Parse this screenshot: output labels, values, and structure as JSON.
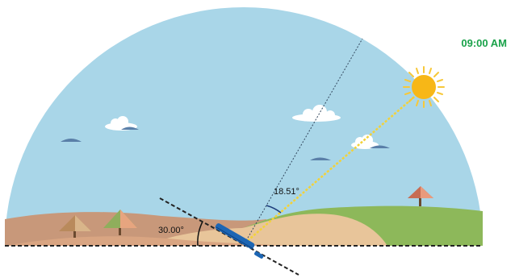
{
  "time_label": "09:00 AM",
  "annotations": {
    "panel_tilt_angle": "30.00°",
    "sun_incidence_angle": "18.51°"
  },
  "colors": {
    "sky": "#a9d6e8",
    "sun": "#f7b717",
    "time_label": "#1aa24a",
    "ground_brown": "#c8987a",
    "ground_sand": "#e8c59a",
    "hill_green": "#8db85a",
    "panel": "#1d66b4"
  },
  "icons": [
    "sun-icon",
    "cloud-icon",
    "tree-icon",
    "solar-panel-icon"
  ]
}
